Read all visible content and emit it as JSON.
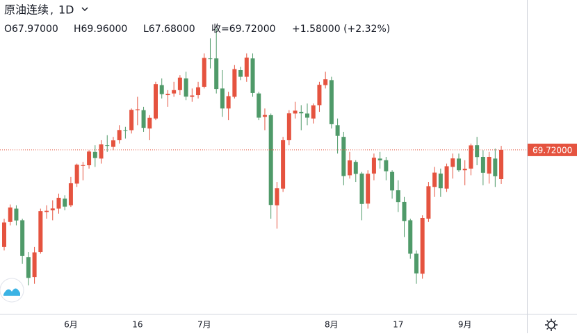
{
  "chart_data": {
    "type": "candlestick",
    "header": {
      "symbol": "原油连续",
      "interval": "1D",
      "open": "O67.97000",
      "high": "H69.96000",
      "low": "L67.68000",
      "close": "收=69.72000",
      "change": "+1.58000 (+2.32%)"
    },
    "categories": [
      null,
      null,
      null,
      null,
      null,
      null,
      null,
      null,
      null,
      null,
      null,
      "6月",
      null,
      null,
      null,
      null,
      null,
      null,
      null,
      null,
      null,
      null,
      "16",
      null,
      null,
      null,
      null,
      null,
      null,
      null,
      null,
      null,
      null,
      "7月",
      null,
      null,
      null,
      null,
      null,
      null,
      null,
      null,
      null,
      null,
      null,
      null,
      null,
      null,
      null,
      null,
      null,
      null,
      null,
      null,
      "8月",
      null,
      null,
      null,
      null,
      null,
      null,
      null,
      null,
      null,
      null,
      "17",
      null,
      null,
      null,
      null,
      null,
      null,
      null,
      null,
      null,
      null,
      "9月",
      null,
      null,
      null,
      null,
      null,
      null
    ],
    "open": [
      63.9,
      65.4,
      66.2,
      65.5,
      63.3,
      62.1,
      63.6,
      66.0,
      66.1,
      66.2,
      66.8,
      66.4,
      67.7,
      68.8,
      68.8,
      69.6,
      69.2,
      70.0,
      69.9,
      70.3,
      70.9,
      70.9,
      72.1,
      72.1,
      71.0,
      71.6,
      73.6,
      73.0,
      73.1,
      73.3,
      74.0,
      72.9,
      73.0,
      73.5,
      75.2,
      75.2,
      73.4,
      72.2,
      72.9,
      74.5,
      74.1,
      75.2,
      73.1,
      71.7,
      71.8,
      66.4,
      67.4,
      70.3,
      71.9,
      72.0,
      71.9,
      71.6,
      72.4,
      73.6,
      73.9,
      71.2,
      70.5,
      68.2,
      69.0,
      68.3,
      66.5,
      68.3,
      69.2,
      69.1,
      68.4,
      67.3,
      66.6,
      65.5,
      63.5,
      62.3,
      65.6,
      67.5,
      68.3,
      67.4,
      68.7,
      69.2,
      68.5,
      68.6,
      70.0,
      69.3,
      68.3,
      69.2,
      67.97
    ],
    "high": [
      65.6,
      66.45,
      66.4,
      65.6,
      63.6,
      63.9,
      66.2,
      66.4,
      66.7,
      67.1,
      67.0,
      68.1,
      68.9,
      69.0,
      69.7,
      70.0,
      70.3,
      70.6,
      70.5,
      71.2,
      71.1,
      72.2,
      72.9,
      72.3,
      71.8,
      73.8,
      74.0,
      73.3,
      73.8,
      74.2,
      74.4,
      73.4,
      73.8,
      75.5,
      76.4,
      76.98,
      74.5,
      73.2,
      74.8,
      74.7,
      75.5,
      75.5,
      73.2,
      72.2,
      71.9,
      67.8,
      70.5,
      72.1,
      72.6,
      72.4,
      72.5,
      72.5,
      73.8,
      74.4,
      74.1,
      71.6,
      70.8,
      69.6,
      69.1,
      68.4,
      68.5,
      69.5,
      69.6,
      69.3,
      68.5,
      67.9,
      66.9,
      65.6,
      63.7,
      65.8,
      67.8,
      68.7,
      68.6,
      68.9,
      69.5,
      69.5,
      69.1,
      70.1,
      70.5,
      69.7,
      69.6,
      69.8,
      69.96
    ],
    "low": [
      63.7,
      65.2,
      65.2,
      62.9,
      61.6,
      61.7,
      63.5,
      65.6,
      65.5,
      65.9,
      66.1,
      66.3,
      67.5,
      67.9,
      68.6,
      68.7,
      68.9,
      69.6,
      69.7,
      70.1,
      70.4,
      70.7,
      71.2,
      70.8,
      70.3,
      71.5,
      72.8,
      72.3,
      72.9,
      73.0,
      72.7,
      72.6,
      72.8,
      73.4,
      74.6,
      73.1,
      71.7,
      71.5,
      72.8,
      73.9,
      73.8,
      72.9,
      71.5,
      70.9,
      65.6,
      65.0,
      67.2,
      70.0,
      71.6,
      70.9,
      71.2,
      71.3,
      72.0,
      73.4,
      71.0,
      69.5,
      67.6,
      68.0,
      67.8,
      65.5,
      66.2,
      67.9,
      68.6,
      67.9,
      66.8,
      66.0,
      64.5,
      63.2,
      61.7,
      62.0,
      65.4,
      66.9,
      66.9,
      67.2,
      68.0,
      68.4,
      67.6,
      68.2,
      68.8,
      67.6,
      67.7,
      67.5,
      67.68
    ],
    "close": [
      65.37,
      66.27,
      65.49,
      63.36,
      62.05,
      63.58,
      66.05,
      66.07,
      66.21,
      66.85,
      66.32,
      67.72,
      68.83,
      68.81,
      69.62,
      69.23,
      70.05,
      69.96,
      70.29,
      70.91,
      70.88,
      72.12,
      72.15,
      71.04,
      71.64,
      73.66,
      73.06,
      73.08,
      73.3,
      74.05,
      72.91,
      72.98,
      73.47,
      75.23,
      75.16,
      73.37,
      72.2,
      72.94,
      74.56,
      74.1,
      75.25,
      73.13,
      71.65,
      71.81,
      66.42,
      67.42,
      70.3,
      71.91,
      72.07,
      71.91,
      71.65,
      72.39,
      73.62,
      73.95,
      71.26,
      70.56,
      68.15,
      69.09,
      68.28,
      66.48,
      68.29,
      69.25,
      69.09,
      68.44,
      67.29,
      66.59,
      65.46,
      63.5,
      62.32,
      65.64,
      67.54,
      68.36,
      67.42,
      68.74,
      69.21,
      68.5,
      68.59,
      69.99,
      69.29,
      68.35,
      69.3,
      68.14,
      69.72
    ],
    "up_color": "#e5533f",
    "down_color": "#4f9a69",
    "last_price": {
      "value": 69.72,
      "label": "69.72000"
    },
    "ylim": [
      59.9,
      78.7
    ]
  }
}
